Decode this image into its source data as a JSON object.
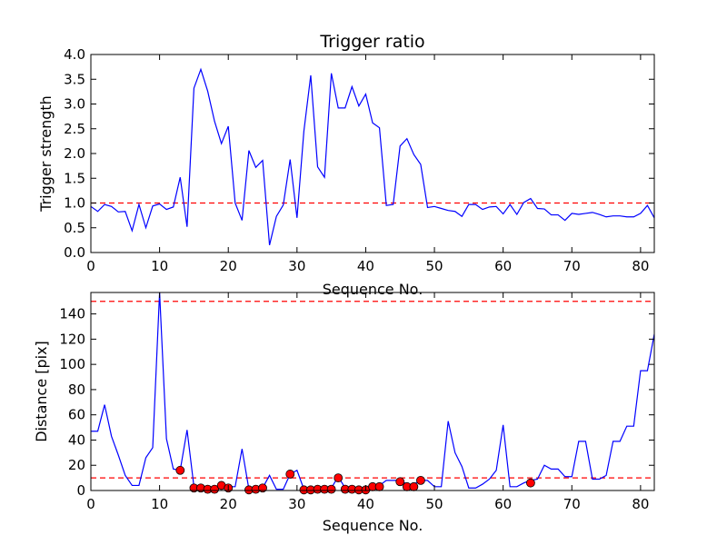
{
  "chart_data": [
    {
      "type": "line",
      "title": "Trigger ratio",
      "xlabel": "Sequence No.",
      "ylabel": "Trigger strength",
      "xlim": [
        0,
        82
      ],
      "ylim": [
        0,
        4.0
      ],
      "xticks": [
        0,
        10,
        20,
        30,
        40,
        50,
        60,
        70,
        80
      ],
      "yticks": [
        0.0,
        0.5,
        1.0,
        1.5,
        2.0,
        2.5,
        3.0,
        3.5,
        4.0
      ],
      "ytick_labels": [
        "0.0",
        "0.5",
        "1.0",
        "1.5",
        "2.0",
        "2.5",
        "3.0",
        "3.5",
        "4.0"
      ],
      "grid": false,
      "colors": {
        "line": "#0000ff",
        "threshold": "#ff0000"
      },
      "series": [
        {
          "values": [
            0.93,
            0.83,
            0.97,
            0.93,
            0.82,
            0.83,
            0.44,
            0.97,
            0.5,
            0.94,
            0.98,
            0.87,
            0.92,
            1.52,
            0.52,
            3.32,
            3.7,
            3.26,
            2.65,
            2.2,
            2.55,
            1.0,
            0.65,
            2.06,
            1.72,
            1.86,
            0.15,
            0.73,
            0.96,
            1.88,
            0.7,
            2.45,
            3.58,
            1.73,
            1.52,
            3.62,
            2.92,
            2.92,
            3.35,
            2.96,
            3.2,
            2.62,
            2.52,
            0.95,
            0.97,
            2.15,
            2.3,
            1.98,
            1.78,
            0.91,
            0.93,
            0.89,
            0.85,
            0.83,
            0.73,
            0.97,
            0.97,
            0.87,
            0.92,
            0.93,
            0.78,
            0.97,
            0.77,
            1.01,
            1.09,
            0.89,
            0.88,
            0.76,
            0.76,
            0.65,
            0.79,
            0.77,
            0.79,
            0.81,
            0.77,
            0.72,
            0.74,
            0.74,
            0.72,
            0.72,
            0.79,
            0.95,
            0.7
          ]
        }
      ],
      "threshold_lines": [
        1.0
      ]
    },
    {
      "type": "line",
      "xlabel": "Sequence No.",
      "ylabel": "Distance [pix]",
      "xlim": [
        0,
        82
      ],
      "ylim": [
        0,
        157
      ],
      "xticks": [
        0,
        10,
        20,
        30,
        40,
        50,
        60,
        70,
        80
      ],
      "yticks": [
        0,
        20,
        40,
        60,
        80,
        100,
        120,
        140
      ],
      "ytick_labels": [
        "0",
        "20",
        "40",
        "60",
        "80",
        "100",
        "120",
        "140"
      ],
      "grid": false,
      "colors": {
        "line": "#0000ff",
        "threshold": "#ff0000",
        "marker": "#ff0000"
      },
      "series": [
        {
          "values": [
            47,
            47,
            68,
            43,
            28,
            12,
            4,
            4,
            26,
            34,
            157,
            41,
            17,
            16,
            48,
            3,
            3,
            2,
            2,
            4,
            3,
            3,
            33,
            1,
            1,
            2,
            12,
            1,
            1,
            13,
            16,
            1,
            1,
            2,
            2,
            2,
            11,
            2,
            2,
            1,
            1,
            4,
            4,
            8,
            8,
            8,
            5,
            5,
            8,
            8,
            3,
            3,
            55,
            30,
            19,
            2,
            2,
            5,
            9,
            16,
            52,
            3,
            3,
            6,
            8,
            9,
            20,
            17,
            17,
            11,
            11,
            39,
            39,
            9,
            9,
            12,
            39,
            39,
            51,
            51,
            95,
            95,
            124
          ]
        },
        {
          "type": "scatter",
          "x": [
            13,
            15,
            16,
            17,
            18,
            19,
            20,
            23,
            24,
            25,
            29,
            31,
            32,
            33,
            34,
            35,
            36,
            37,
            38,
            39,
            40,
            41,
            42,
            45,
            46,
            47,
            48,
            64
          ],
          "values": [
            16,
            2,
            2,
            1,
            1,
            4,
            2,
            0.5,
            1,
            2,
            13,
            0.5,
            0.5,
            1,
            1,
            1,
            10,
            1,
            1,
            0.5,
            0.5,
            3,
            3,
            7,
            3,
            3,
            8,
            6
          ]
        }
      ],
      "threshold_lines": [
        10,
        150
      ]
    }
  ]
}
